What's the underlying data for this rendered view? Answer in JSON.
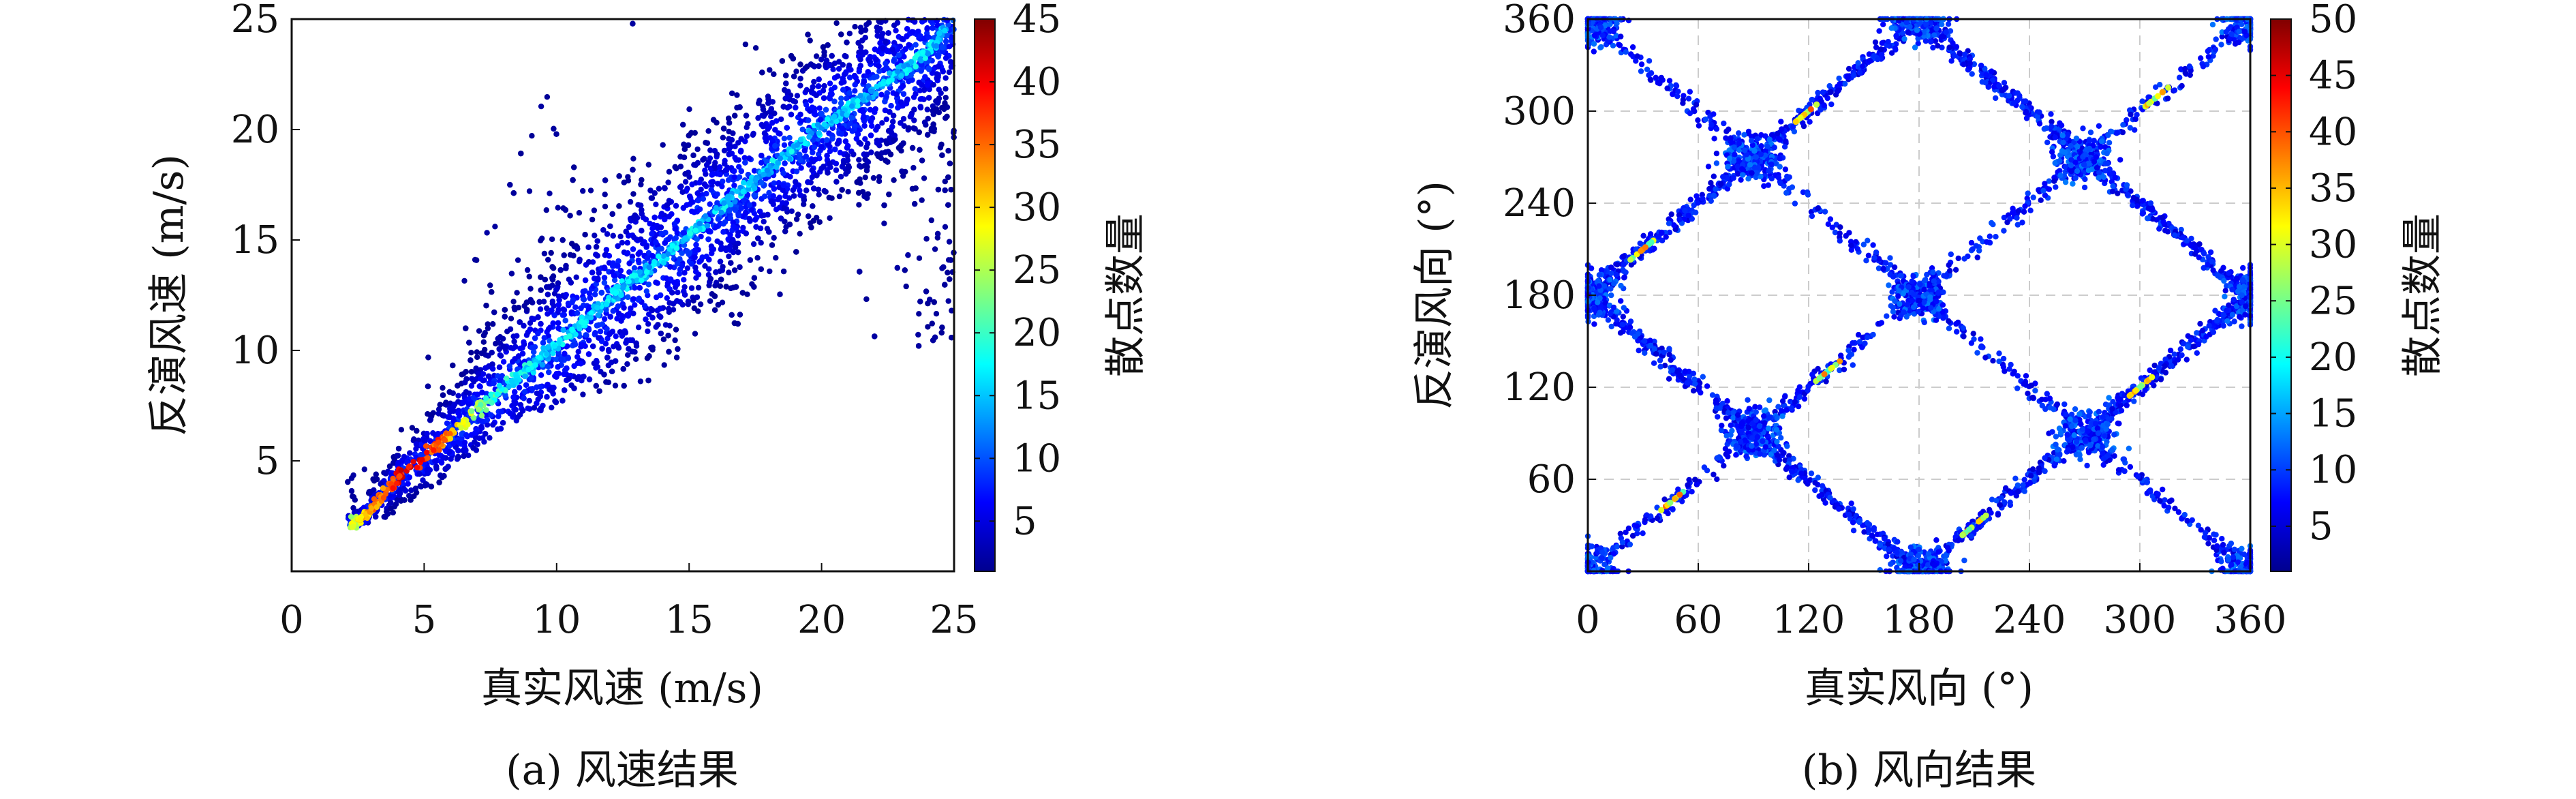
{
  "chart_data": [
    {
      "type": "heatmap",
      "subtype": "density-scatter",
      "caption": "(a) 风速结果",
      "xlabel": "真实风速 (m/s)",
      "ylabel": "反演风速 (m/s)",
      "xlim": [
        0,
        25
      ],
      "ylim": [
        0,
        25
      ],
      "xticks": [
        0,
        5,
        10,
        15,
        20,
        25
      ],
      "yticks": [
        5,
        10,
        15,
        20,
        25
      ],
      "grid": false,
      "colorbar": {
        "label": "散点数量",
        "range": [
          1,
          45
        ],
        "ticks": [
          5,
          10,
          15,
          20,
          25,
          30,
          35,
          40,
          45
        ],
        "colormap": "jet"
      },
      "density_ridge": [
        [
          2.5,
          2.2
        ],
        [
          4,
          4.2
        ],
        [
          6,
          6.2
        ],
        [
          8,
          8.3
        ],
        [
          10,
          10.2
        ],
        [
          12,
          12.4
        ],
        [
          14,
          14.2
        ],
        [
          16,
          16.3
        ],
        [
          18,
          18.2
        ],
        [
          20,
          20.1
        ],
        [
          22,
          21.8
        ],
        [
          24,
          23.5
        ],
        [
          25,
          25
        ]
      ],
      "spread_envelope": {
        "x": [
          2,
          4,
          6,
          8,
          10,
          12,
          14,
          16,
          18,
          20,
          22,
          24,
          25
        ],
        "lower": [
          2,
          2.2,
          4.5,
          6.5,
          7.5,
          8.2,
          8.8,
          9.2,
          9.5,
          9.8,
          10,
          10.2,
          10.5
        ],
        "upper": [
          4,
          7,
          12.5,
          18,
          22.5,
          25,
          25,
          25,
          25,
          25,
          25,
          25,
          25
        ]
      }
    },
    {
      "type": "heatmap",
      "subtype": "density-scatter",
      "caption": "(b) 风向结果",
      "xlabel": "真实风向 (°)",
      "ylabel": "反演风向 (°)",
      "xlim": [
        0,
        360
      ],
      "ylim": [
        0,
        360
      ],
      "xticks": [
        0,
        60,
        120,
        180,
        240,
        300,
        360
      ],
      "yticks": [
        60,
        120,
        180,
        240,
        300,
        360
      ],
      "grid": true,
      "colorbar": {
        "label": "散点数量",
        "range": [
          1,
          50
        ],
        "ticks": [
          5,
          10,
          15,
          20,
          25,
          30,
          35,
          40,
          45,
          50
        ],
        "colormap": "jet"
      },
      "density_lines": [
        {
          "from": [
            0,
            0
          ],
          "to": [
            360,
            360
          ]
        },
        {
          "from": [
            0,
            180
          ],
          "to": [
            180,
            360
          ]
        },
        {
          "from": [
            180,
            0
          ],
          "to": [
            360,
            180
          ]
        },
        {
          "from": [
            0,
            360
          ],
          "to": [
            360,
            0
          ]
        },
        {
          "from": [
            0,
            180
          ],
          "to": [
            180,
            0
          ]
        },
        {
          "from": [
            180,
            360
          ],
          "to": [
            360,
            180
          ]
        }
      ],
      "density_clusters": [
        [
          0,
          0
        ],
        [
          0,
          180
        ],
        [
          0,
          360
        ],
        [
          90,
          90
        ],
        [
          90,
          270
        ],
        [
          180,
          0
        ],
        [
          180,
          180
        ],
        [
          180,
          360
        ],
        [
          270,
          90
        ],
        [
          270,
          270
        ],
        [
          360,
          0
        ],
        [
          360,
          180
        ],
        [
          360,
          360
        ]
      ],
      "hotspots": [
        [
          45,
          45
        ],
        [
          130,
          130
        ],
        [
          310,
          310
        ],
        [
          30,
          210
        ],
        [
          120,
          300
        ],
        [
          210,
          30
        ],
        [
          300,
          120
        ]
      ]
    }
  ]
}
